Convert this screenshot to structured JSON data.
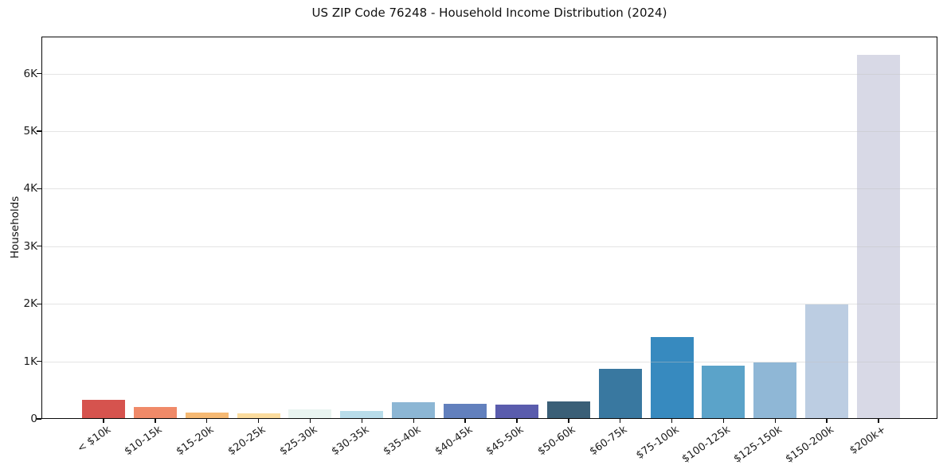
{
  "title": "US ZIP Code 76248 - Household Income Distribution (2024)",
  "chart_data": {
    "type": "bar",
    "title": "US ZIP Code 76248 - Household Income Distribution (2024)",
    "xlabel": "",
    "ylabel": "Households",
    "categories": [
      "< $10k",
      "$10-15k",
      "$15-20k",
      "$20-25k",
      "$25-30k",
      "$30-35k",
      "$35-40k",
      "$40-45k",
      "$45-50k",
      "$50-60k",
      "$60-75k",
      "$75-100k",
      "$100-125k",
      "$125-150k",
      "$150-200k",
      "$200k+"
    ],
    "values": [
      330,
      210,
      105,
      90,
      165,
      140,
      295,
      260,
      250,
      300,
      870,
      1420,
      925,
      980,
      1990,
      6330
    ],
    "bar_colors": [
      "#d6534e",
      "#f08a69",
      "#f6b973",
      "#fbdc9e",
      "#e9f4f0",
      "#b8dcea",
      "#8cb6d4",
      "#6280bd",
      "#5a5cad",
      "#3a5f77",
      "#3978a0",
      "#378abf",
      "#5ba3c9",
      "#8fb7d6",
      "#bccde2",
      "#d8d9e6"
    ],
    "ytick_labels": [
      "0",
      "1K",
      "2K",
      "3K",
      "4K",
      "5K",
      "6K"
    ],
    "ytick_values": [
      0,
      1000,
      2000,
      3000,
      4000,
      5000,
      6000
    ],
    "ylim": [
      0,
      6650
    ],
    "grid": "horizontal",
    "legend": "none",
    "frame_color": "#0a0a0a",
    "background_color": "#ffffff"
  }
}
